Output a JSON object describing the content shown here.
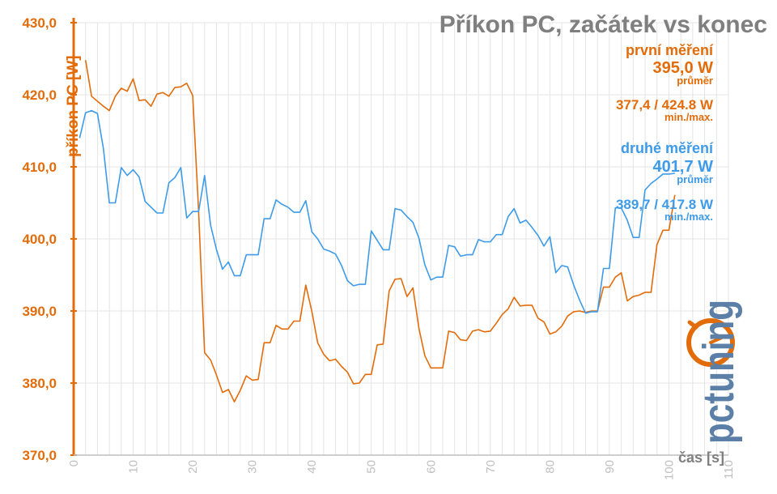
{
  "chart_data": {
    "type": "line",
    "title": "Příkon PC, začátek vs konec",
    "ylabel": "příkon PC [W]",
    "xlabel": "čas [s]",
    "ylim": [
      370,
      430
    ],
    "xlim": [
      0,
      110
    ],
    "yticks": [
      "370,0",
      "380,0",
      "390,0",
      "400,0",
      "410,0",
      "420,0",
      "430,0"
    ],
    "xticks": [
      "0",
      "10",
      "20",
      "30",
      "40",
      "50",
      "60",
      "70",
      "80",
      "90",
      "100",
      "110"
    ],
    "grid": true,
    "series": [
      {
        "name": "první měření",
        "color": "#e36c0a",
        "avg": "395,0 W",
        "avg_label": "průměr",
        "minmax": "377,4 / 424.8 W",
        "minmax_label": "min./max.",
        "x": [
          2,
          3,
          4,
          5,
          6,
          7,
          8,
          9,
          10,
          11,
          12,
          13,
          14,
          15,
          16,
          17,
          18,
          19,
          20,
          21,
          22,
          23,
          24,
          25,
          26,
          27,
          28,
          29,
          30,
          31,
          32,
          33,
          34,
          35,
          36,
          37,
          38,
          39,
          40,
          41,
          42,
          43,
          44,
          45,
          46,
          47,
          48,
          49,
          50,
          51,
          52,
          53,
          54,
          55,
          56,
          57,
          58,
          59,
          60,
          61,
          62,
          63,
          64,
          65,
          66,
          67,
          68,
          69,
          70,
          71,
          72,
          73,
          74,
          75,
          76,
          77,
          78,
          79,
          80,
          81,
          82,
          83,
          84,
          85,
          86,
          87,
          88,
          89,
          90,
          91,
          92,
          93,
          94,
          95,
          96,
          97,
          98,
          99,
          100,
          101
        ],
        "values": [
          424.8,
          419.8,
          419.1,
          418.4,
          417.8,
          419.8,
          420.9,
          420.5,
          422.2,
          419.2,
          419.3,
          418.4,
          420.1,
          420.3,
          419.8,
          421.0,
          421.1,
          421.6,
          419.9,
          403.8,
          384.2,
          383.2,
          381.1,
          378.7,
          379.1,
          377.4,
          379.0,
          381.0,
          380.4,
          380.5,
          385.6,
          385.6,
          388.0,
          387.5,
          387.5,
          388.6,
          388.6,
          393.6,
          390.0,
          385.6,
          384.0,
          383.1,
          383.3,
          382.3,
          381.5,
          379.9,
          380.0,
          381.2,
          381.2,
          385.3,
          385.4,
          392.8,
          394.4,
          394.5,
          392.0,
          393.2,
          387.6,
          383.8,
          382.1,
          382.1,
          382.1,
          387.2,
          387.0,
          386.0,
          385.9,
          387.2,
          387.4,
          387.1,
          387.2,
          388.3,
          389.5,
          390.3,
          391.9,
          390.7,
          390.8,
          390.8,
          389.0,
          388.5,
          386.8,
          387.1,
          387.9,
          389.3,
          389.9,
          390.0,
          389.8,
          390.0,
          390.0,
          393.3,
          393.3,
          394.7,
          395.3,
          391.4,
          392.0,
          392.2,
          392.6,
          392.6,
          399.2,
          401.2,
          401.2,
          406.1
        ]
      },
      {
        "name": "druhé měření",
        "color": "#3d9be9",
        "avg": "401,7 W",
        "avg_label": "průměr",
        "minmax": "389,7 / 417.8 W",
        "minmax_label": "min./max.",
        "x": [
          1,
          2,
          3,
          4,
          5,
          6,
          7,
          8,
          9,
          10,
          11,
          12,
          13,
          14,
          15,
          16,
          17,
          18,
          19,
          20,
          21,
          22,
          23,
          24,
          25,
          26,
          27,
          28,
          29,
          30,
          31,
          32,
          33,
          34,
          35,
          36,
          37,
          38,
          39,
          40,
          41,
          42,
          43,
          44,
          45,
          46,
          47,
          48,
          49,
          50,
          51,
          52,
          53,
          54,
          55,
          56,
          57,
          58,
          59,
          60,
          61,
          62,
          63,
          64,
          65,
          66,
          67,
          68,
          69,
          70,
          71,
          72,
          73,
          74,
          75,
          76,
          77,
          78,
          79,
          80,
          81,
          82,
          83,
          84,
          85,
          86,
          87,
          88,
          89,
          90,
          91,
          92,
          93,
          94,
          95,
          96,
          97,
          98,
          99,
          100,
          101
        ],
        "values": [
          414.0,
          417.5,
          417.8,
          417.4,
          412.5,
          405.0,
          405.0,
          409.9,
          408.8,
          409.6,
          408.6,
          405.2,
          404.4,
          403.6,
          403.6,
          407.8,
          408.5,
          409.9,
          402.9,
          403.8,
          403.8,
          408.8,
          401.9,
          398.5,
          395.8,
          396.8,
          394.9,
          394.9,
          397.8,
          397.8,
          397.8,
          402.8,
          402.8,
          405.4,
          404.8,
          404.4,
          403.7,
          403.7,
          405.3,
          401.0,
          400.0,
          398.6,
          398.3,
          397.9,
          396.3,
          394.2,
          393.5,
          393.7,
          393.7,
          401.1,
          399.8,
          398.5,
          398.5,
          404.2,
          404.0,
          403.1,
          402.3,
          400.1,
          396.4,
          394.3,
          394.7,
          394.7,
          399.1,
          398.9,
          397.6,
          397.8,
          397.8,
          399.9,
          399.6,
          399.6,
          400.6,
          400.6,
          403.1,
          404.2,
          402.2,
          402.6,
          401.6,
          400.5,
          399.0,
          400.3,
          395.3,
          396.3,
          396.1,
          393.6,
          391.5,
          389.7,
          389.9,
          389.9,
          395.9,
          395.9,
          404.3,
          404.3,
          402.6,
          400.2,
          400.2,
          406.8,
          407.7,
          408.3,
          409.0,
          409.0,
          409.1
        ]
      }
    ]
  },
  "logo": {
    "text": "pctuning",
    "colors": {
      "orange": "#e36c0a",
      "blue": "#5b7fa6"
    }
  }
}
